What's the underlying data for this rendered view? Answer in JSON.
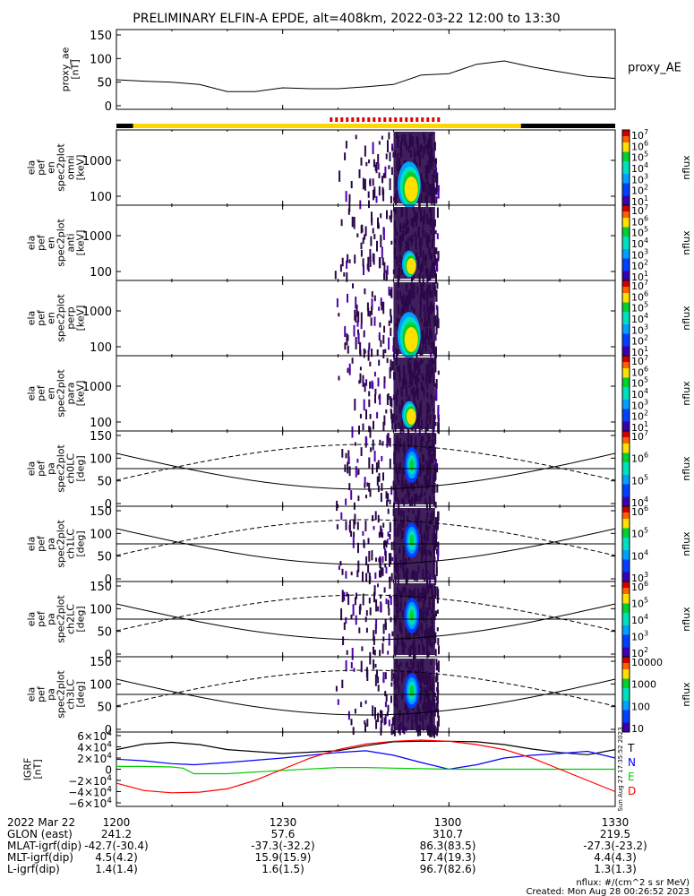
{
  "title": "PRELIMINARY ELFIN-A EPDE, alt=408km, 2022-03-22 12:00 to 13:30",
  "chart_data": {
    "type": "heatmap",
    "time_ticks": [
      "1200",
      "1230",
      "1300",
      "1330"
    ],
    "time_range_min": [
      0,
      90
    ],
    "proxy_ae": {
      "ylabel": [
        "proxy_ae",
        "[nT]"
      ],
      "legend": "proxy_AE",
      "yticks": [
        "0",
        "50",
        "100",
        "150"
      ],
      "ylim": [
        0,
        150
      ],
      "x": [
        0,
        5,
        10,
        15,
        20,
        25,
        30,
        35,
        40,
        45,
        50,
        55,
        60,
        65,
        70,
        75,
        80,
        85,
        90
      ],
      "y": [
        55,
        52,
        50,
        45,
        30,
        30,
        38,
        36,
        36,
        40,
        45,
        65,
        68,
        88,
        95,
        82,
        72,
        62,
        58
      ]
    },
    "science_bar": {
      "yellow_span": [
        3,
        73
      ],
      "red_dashes_span": [
        38.5,
        58
      ]
    },
    "panels": [
      {
        "ylabel": [
          "ela",
          "pef",
          "en",
          "spec2plot",
          "omni",
          "[keV]"
        ],
        "yticks": [
          "100",
          "1000"
        ],
        "kind": "energy",
        "cbar_ticks": [
          "10^7",
          "10^6",
          "10^5",
          "10^4",
          "10^3",
          "10^2",
          "10^1"
        ],
        "cbar_label": "nflux"
      },
      {
        "ylabel": [
          "ela",
          "pef",
          "en",
          "spec2plot",
          "anti",
          "[keV]"
        ],
        "yticks": [
          "100",
          "1000"
        ],
        "kind": "energy",
        "cbar_ticks": [
          "10^7",
          "10^6",
          "10^5",
          "10^4",
          "10^3",
          "10^2",
          "10^1"
        ],
        "cbar_label": "nflux"
      },
      {
        "ylabel": [
          "ela",
          "pef",
          "en",
          "spec2plot",
          "perp",
          "[keV]"
        ],
        "yticks": [
          "100",
          "1000"
        ],
        "kind": "energy",
        "cbar_ticks": [
          "10^7",
          "10^6",
          "10^5",
          "10^4",
          "10^3",
          "10^2",
          "10^1"
        ],
        "cbar_label": "nflux"
      },
      {
        "ylabel": [
          "ela",
          "pef",
          "en",
          "spec2plot",
          "para",
          "[keV]"
        ],
        "yticks": [
          "100",
          "1000"
        ],
        "kind": "energy",
        "cbar_ticks": [
          "10^7",
          "10^6",
          "10^5",
          "10^4",
          "10^3",
          "10^2",
          "10^1"
        ],
        "cbar_label": "nflux"
      },
      {
        "ylabel": [
          "ela",
          "pef",
          "pa",
          "spec2plot",
          "ch0LC",
          "[deg]"
        ],
        "yticks": [
          "0",
          "50",
          "100",
          "150"
        ],
        "kind": "pa",
        "cbar_ticks": [
          "10^7",
          "10^6",
          "10^5",
          "10^4"
        ],
        "cbar_label": "nflux"
      },
      {
        "ylabel": [
          "ela",
          "pef",
          "pa",
          "spec2plot",
          "ch1LC",
          "[deg]"
        ],
        "yticks": [
          "0",
          "50",
          "100",
          "150"
        ],
        "kind": "pa",
        "cbar_ticks": [
          "10^6",
          "10^5",
          "10^4",
          "10^3"
        ],
        "cbar_label": "nflux"
      },
      {
        "ylabel": [
          "ela",
          "pef",
          "pa",
          "spec2plot",
          "ch2LC",
          "[deg]"
        ],
        "yticks": [
          "0",
          "50",
          "100",
          "150"
        ],
        "kind": "pa",
        "cbar_ticks": [
          "10^6",
          "10^5",
          "10^4",
          "10^3",
          "10^2"
        ],
        "cbar_label": "nflux"
      },
      {
        "ylabel": [
          "ela",
          "pef",
          "pa",
          "spec2plot",
          "ch3LC",
          "[deg]"
        ],
        "yticks": [
          "0",
          "50",
          "100",
          "150"
        ],
        "kind": "pa",
        "cbar_ticks": [
          "10000",
          "1000",
          "100",
          "10"
        ],
        "cbar_label": "nflux"
      }
    ],
    "igrf": {
      "ylabel": [
        "IGRF",
        "[nT]"
      ],
      "yticks": [
        "6×10^4",
        "4×10^4",
        "2×10^4",
        "0",
        "−2×10^4",
        "−4×10^4",
        "−6×10^4"
      ],
      "ylim": [
        -60000,
        60000
      ],
      "series": [
        {
          "name": "T",
          "color": "#000000",
          "x": [
            0,
            5,
            10,
            15,
            20,
            30,
            40,
            45,
            50,
            55,
            60,
            65,
            70,
            75,
            80,
            85,
            90
          ],
          "y": [
            35000,
            45000,
            48000,
            44000,
            35000,
            28000,
            33000,
            42000,
            49000,
            50000,
            50000,
            49000,
            44000,
            36000,
            30000,
            26000,
            35000
          ]
        },
        {
          "name": "N",
          "color": "#0000ff",
          "x": [
            0,
            5,
            10,
            12,
            14,
            20,
            30,
            40,
            45,
            50,
            55,
            60,
            65,
            70,
            75,
            80,
            85,
            90
          ],
          "y": [
            18000,
            15000,
            10000,
            9000,
            8000,
            12000,
            20000,
            30000,
            33000,
            25000,
            12000,
            0,
            8000,
            20000,
            25000,
            28000,
            32000,
            20000
          ]
        },
        {
          "name": "E",
          "color": "#00cc00",
          "x": [
            0,
            5,
            10,
            12,
            14,
            20,
            30,
            40,
            45,
            50,
            55,
            60,
            70,
            80,
            90
          ],
          "y": [
            5000,
            5000,
            4000,
            2000,
            -8000,
            -8000,
            -2000,
            3000,
            3000,
            2000,
            1000,
            0,
            0,
            0,
            0
          ]
        },
        {
          "name": "D",
          "color": "#ff0000",
          "x": [
            0,
            5,
            10,
            15,
            20,
            25,
            30,
            35,
            40,
            45,
            50,
            55,
            60,
            65,
            70,
            75,
            80,
            85,
            90
          ],
          "y": [
            -25000,
            -38000,
            -42000,
            -41000,
            -35000,
            -20000,
            0,
            20000,
            35000,
            45000,
            50000,
            52000,
            50000,
            44000,
            35000,
            20000,
            0,
            -20000,
            -40000
          ]
        }
      ],
      "side_stamp": "Sun Aug 27 17:35:52 2023"
    }
  },
  "footer": {
    "rows": [
      {
        "label": "2022 Mar 22",
        "values": [
          "1200",
          "1230",
          "1300",
          "1330"
        ]
      },
      {
        "label": "GLON (east)",
        "values": [
          "241.2",
          "57.6",
          "310.7",
          "219.5"
        ]
      },
      {
        "label": "MLAT-igrf(dip)",
        "values": [
          "-42.7(-30.4)",
          "-37.3(-32.2)",
          "86.3(83.5)",
          "-27.3(-23.2)"
        ]
      },
      {
        "label": "MLT-igrf(dip)",
        "values": [
          "4.5(4.2)",
          "15.9(15.9)",
          "17.4(19.3)",
          "4.4(4.3)"
        ]
      },
      {
        "label": "L-igrf(dip)",
        "values": [
          "1.4(1.4)",
          "1.6(1.5)",
          "96.7(82.6)",
          "1.3(1.3)"
        ]
      }
    ],
    "units_note": "nflux: #/(cm^2 s sr MeV)",
    "created": "Created: Mon Aug 28 00:26:52 2023"
  }
}
